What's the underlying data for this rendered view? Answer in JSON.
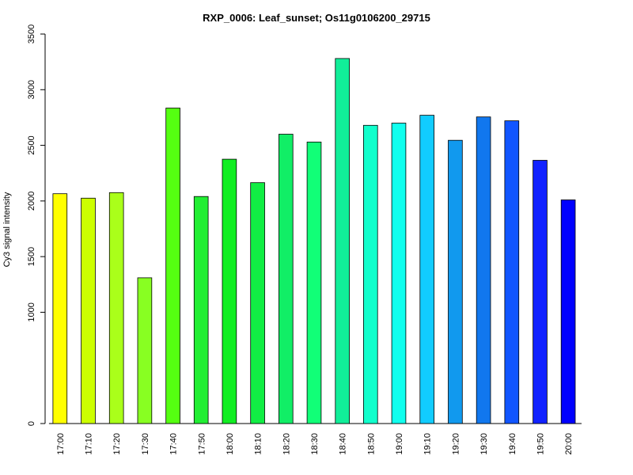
{
  "chart_data": {
    "type": "bar",
    "title": "RXP_0006: Leaf_sunset; Os11g0106200_29715",
    "xlabel": "",
    "ylabel": "Cy3 signal intensity",
    "categories": [
      "17:00",
      "17:10",
      "17:20",
      "17:30",
      "17:40",
      "17:50",
      "18:00",
      "18:10",
      "18:20",
      "18:30",
      "18:40",
      "18:50",
      "19:00",
      "19:10",
      "19:20",
      "19:30",
      "19:40",
      "19:50",
      "20:00"
    ],
    "values": [
      2065,
      2025,
      2075,
      1310,
      2835,
      2040,
      2375,
      2165,
      2600,
      2530,
      3280,
      2680,
      2700,
      2770,
      2545,
      2755,
      2720,
      2365,
      2010
    ],
    "colors": [
      "#FFFF00",
      "#CCFF00",
      "#AAFF1A",
      "#88FF22",
      "#55FF11",
      "#22EE33",
      "#11EE22",
      "#11EE44",
      "#11EE66",
      "#11FF77",
      "#11EE99",
      "#11FFCC",
      "#11FFEE",
      "#11CCFF",
      "#1199EE",
      "#1177EE",
      "#1155FF",
      "#1122FF",
      "#0000FF"
    ],
    "yticks": [
      0,
      1000,
      1500,
      2000,
      2500,
      3000,
      3500
    ],
    "ylim": [
      0,
      3500
    ],
    "grid": false,
    "legend": "none"
  }
}
